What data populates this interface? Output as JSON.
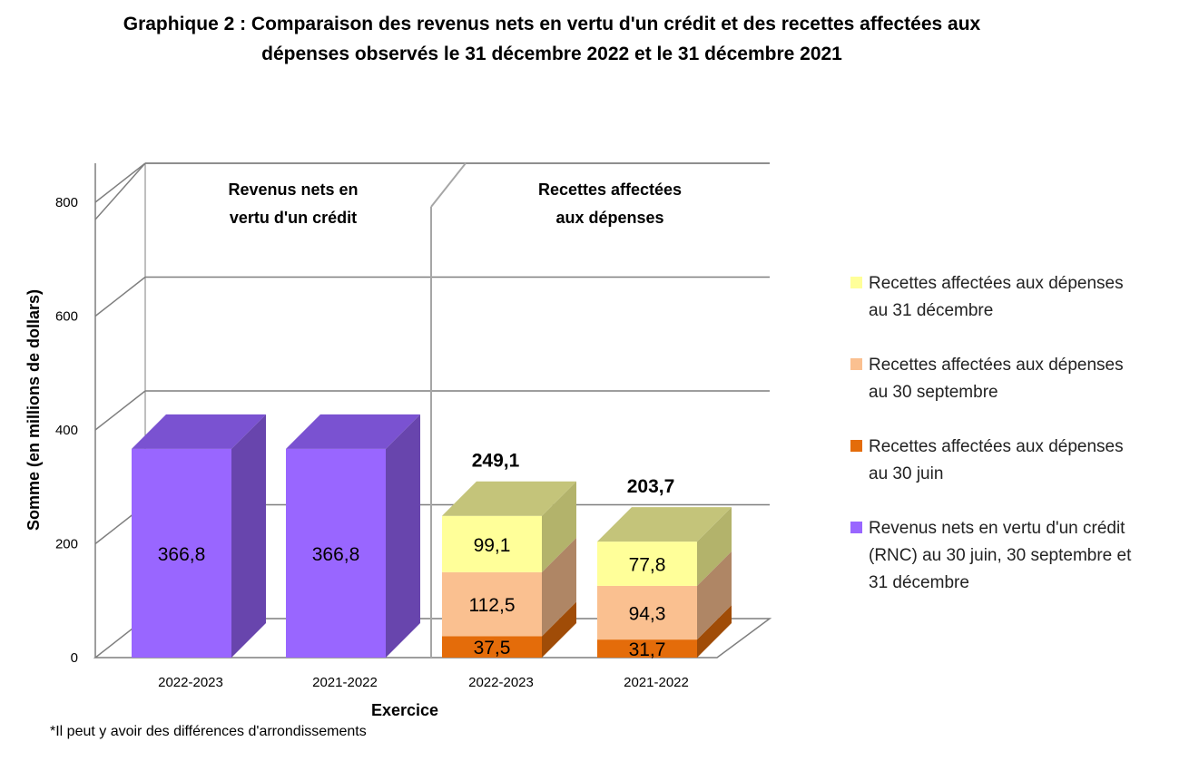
{
  "chart_data": {
    "type": "bar",
    "stacked": true,
    "three_d": true,
    "title_lines": [
      "Graphique 2 : Comparaison des revenus nets en vertu d'un crédit et des recettes affectées aux",
      "dépenses observés le 31 décembre 2022 et le 31 décembre 2021"
    ],
    "xlabel": "Exercice",
    "ylabel": "Somme (en millions de dollars)",
    "ylim": [
      0,
      800
    ],
    "yticks": [
      "0",
      "200",
      "400",
      "600",
      "800"
    ],
    "grid": true,
    "legend_position": "right",
    "panel_labels": [
      [
        "Revenus nets en",
        "vertu d'un crédit"
      ],
      [
        "Recettes affectées",
        "aux dépenses"
      ]
    ],
    "categories": [
      "2022-2023",
      "2021-2022",
      "2022-2023",
      "2021-2022"
    ],
    "series": [
      {
        "legend_lines": [
          "Revenus nets en vertu d'un crédit",
          "(RNC) au 30 juin, 30 septembre et",
          "31 décembre"
        ],
        "color": "#9966ff",
        "values": [
          366.8,
          366.8,
          null,
          null
        ],
        "labels": [
          "366,8",
          "366,8",
          "",
          ""
        ]
      },
      {
        "legend_lines": [
          "Recettes affectées aux dépenses",
          "au 30 juin"
        ],
        "color": "#e46c0a",
        "values": [
          null,
          null,
          37.5,
          31.7
        ],
        "labels": [
          "",
          "",
          "37,5",
          "31,7"
        ]
      },
      {
        "legend_lines": [
          "Recettes affectées aux dépenses",
          "au 30 septembre"
        ],
        "color": "#fac090",
        "values": [
          null,
          null,
          112.5,
          94.3
        ],
        "labels": [
          "",
          "",
          "112,5",
          "94,3"
        ]
      },
      {
        "legend_lines": [
          "Recettes affectées aux dépenses",
          "au 31 décembre"
        ],
        "color": "#ffff99",
        "values": [
          null,
          null,
          99.1,
          77.8
        ],
        "labels": [
          "",
          "",
          "99,1",
          "77,8"
        ]
      }
    ],
    "totals": [
      "",
      "",
      "249,1",
      "203,7"
    ],
    "legend_order": [
      3,
      2,
      1,
      0
    ],
    "note": "*Il peut y avoir des différences d'arrondissements"
  }
}
